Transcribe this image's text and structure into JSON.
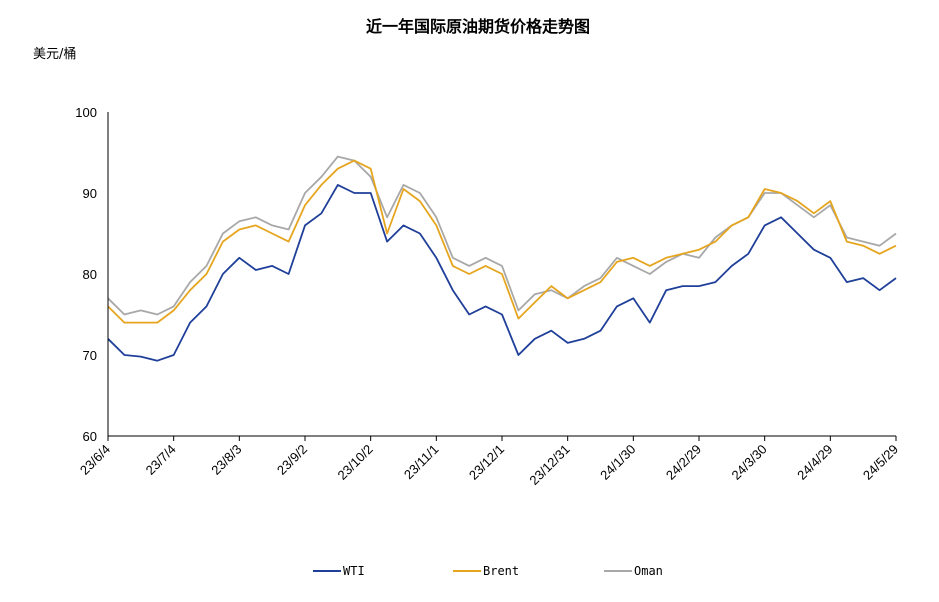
{
  "chart_data": {
    "type": "line",
    "title": "近一年国际原油期货价格走势图",
    "ylabel": "美元/桶",
    "ylim": [
      60,
      100
    ],
    "yticks": [
      "60",
      "70",
      "80",
      "90",
      "100"
    ],
    "xticks": [
      "23/6/4",
      "23/7/4",
      "23/8/3",
      "23/9/2",
      "23/10/2",
      "23/11/1",
      "23/12/1",
      "23/12/31",
      "24/1/30",
      "24/2/29",
      "24/3/30",
      "24/4/29",
      "24/5/29"
    ],
    "x": [
      "23/6/4",
      "23/6/11",
      "23/6/18",
      "23/6/25",
      "23/7/4",
      "23/7/11",
      "23/7/18",
      "23/7/25",
      "23/8/3",
      "23/8/10",
      "23/8/17",
      "23/8/24",
      "23/9/2",
      "23/9/9",
      "23/9/16",
      "23/9/23",
      "23/10/2",
      "23/10/9",
      "23/10/16",
      "23/10/23",
      "23/11/1",
      "23/11/8",
      "23/11/15",
      "23/11/22",
      "23/12/1",
      "23/12/8",
      "23/12/15",
      "23/12/22",
      "23/12/31",
      "24/1/7",
      "24/1/14",
      "24/1/21",
      "24/1/30",
      "24/2/6",
      "24/2/13",
      "24/2/20",
      "24/2/29",
      "24/3/7",
      "24/3/14",
      "24/3/21",
      "24/3/30",
      "24/4/6",
      "24/4/13",
      "24/4/20",
      "24/4/29",
      "24/5/6",
      "24/5/13",
      "24/5/20",
      "24/5/29"
    ],
    "series": [
      {
        "name": "WTI",
        "color": "#1f3f99",
        "values": [
          72.0,
          70.0,
          69.8,
          69.3,
          70.0,
          74.0,
          76.0,
          80.0,
          82.0,
          80.5,
          81.0,
          80.0,
          86.0,
          87.5,
          91.0,
          90.0,
          90.0,
          84.0,
          86.0,
          85.0,
          82.0,
          78.0,
          75.0,
          76.0,
          75.0,
          70.0,
          72.0,
          73.0,
          71.5,
          72.0,
          73.0,
          76.0,
          77.0,
          74.0,
          78.0,
          78.5,
          78.5,
          79.0,
          81.0,
          82.5,
          86.0,
          87.0,
          85.0,
          83.0,
          82.0,
          79.0,
          79.5,
          78.0,
          79.5
        ]
      },
      {
        "name": "Brent",
        "color": "#e6a51e",
        "values": [
          76.0,
          74.0,
          74.0,
          74.0,
          75.5,
          78.0,
          80.0,
          84.0,
          85.5,
          86.0,
          85.0,
          84.0,
          88.5,
          91.0,
          93.0,
          94.0,
          93.0,
          85.0,
          90.5,
          89.0,
          86.0,
          81.0,
          80.0,
          81.0,
          80.0,
          74.5,
          76.5,
          78.5,
          77.0,
          78.0,
          79.0,
          81.5,
          82.0,
          81.0,
          82.0,
          82.5,
          83.0,
          84.0,
          86.0,
          87.0,
          90.5,
          90.0,
          89.0,
          87.5,
          89.0,
          84.0,
          83.5,
          82.5,
          83.5
        ]
      },
      {
        "name": "Oman",
        "color": "#a8a8a8",
        "values": [
          77.0,
          75.0,
          75.5,
          75.0,
          76.0,
          79.0,
          81.0,
          85.0,
          86.5,
          87.0,
          86.0,
          85.5,
          90.0,
          92.0,
          94.5,
          94.0,
          92.0,
          87.0,
          91.0,
          90.0,
          87.0,
          82.0,
          81.0,
          82.0,
          81.0,
          75.5,
          77.5,
          78.0,
          77.0,
          78.5,
          79.5,
          82.0,
          81.0,
          80.0,
          81.5,
          82.5,
          82.0,
          84.5,
          86.0,
          87.0,
          90.0,
          90.0,
          88.5,
          87.0,
          88.5,
          84.5,
          84.0,
          83.5,
          85.0
        ]
      }
    ],
    "legend_position": "bottom",
    "grid": false
  }
}
